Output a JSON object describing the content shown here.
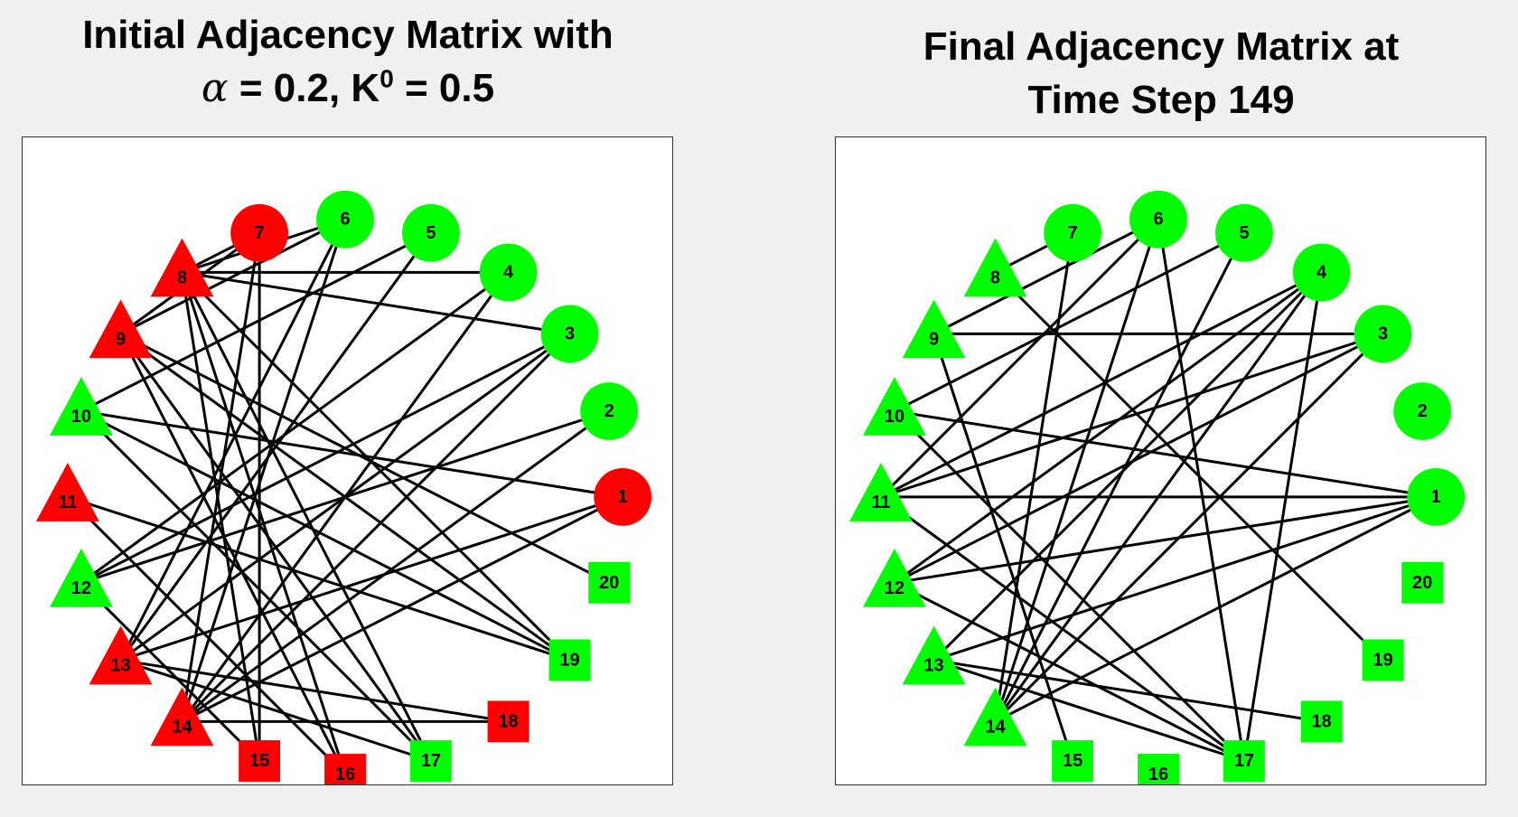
{
  "left": {
    "title_line1": "Initial Adjacency Matrix with",
    "title_alpha": "α",
    "title_mid": " = 0.2, K",
    "title_sup": "0",
    "title_end": " = 0.5",
    "node_colors": {
      "1": "red",
      "2": "green",
      "3": "green",
      "4": "green",
      "5": "green",
      "6": "green",
      "7": "red",
      "8": "red",
      "9": "red",
      "10": "green",
      "11": "red",
      "12": "green",
      "13": "red",
      "14": "red",
      "15": "red",
      "16": "red",
      "17": "green",
      "18": "red",
      "19": "green",
      "20": "green"
    },
    "edges": [
      [
        7,
        8
      ],
      [
        7,
        9
      ],
      [
        7,
        14
      ],
      [
        7,
        15
      ],
      [
        6,
        8
      ],
      [
        6,
        9
      ],
      [
        6,
        13
      ],
      [
        6,
        14
      ],
      [
        5,
        10
      ],
      [
        5,
        13
      ],
      [
        4,
        8
      ],
      [
        4,
        12
      ],
      [
        4,
        14
      ],
      [
        3,
        8
      ],
      [
        3,
        12
      ],
      [
        3,
        13
      ],
      [
        3,
        14
      ],
      [
        2,
        12
      ],
      [
        2,
        14
      ],
      [
        1,
        10
      ],
      [
        1,
        13
      ],
      [
        1,
        14
      ],
      [
        8,
        15
      ],
      [
        8,
        16
      ],
      [
        8,
        17
      ],
      [
        8,
        19
      ],
      [
        9,
        16
      ],
      [
        9,
        17
      ],
      [
        9,
        19
      ],
      [
        9,
        20
      ],
      [
        10,
        17
      ],
      [
        10,
        19
      ],
      [
        11,
        16
      ],
      [
        11,
        19
      ],
      [
        12,
        15
      ],
      [
        13,
        17
      ],
      [
        13,
        18
      ],
      [
        14,
        18
      ]
    ]
  },
  "right": {
    "title_line1": "Final Adjacency Matrix at",
    "title_line2": "Time Step 149",
    "node_colors": {
      "1": "green",
      "2": "green",
      "3": "green",
      "4": "green",
      "5": "green",
      "6": "green",
      "7": "green",
      "8": "green",
      "9": "green",
      "10": "green",
      "11": "green",
      "12": "green",
      "13": "green",
      "14": "green",
      "15": "green",
      "16": "green",
      "17": "green",
      "18": "green",
      "19": "green",
      "20": "green"
    },
    "edges": [
      [
        7,
        8
      ],
      [
        7,
        14
      ],
      [
        6,
        9
      ],
      [
        6,
        11
      ],
      [
        6,
        14
      ],
      [
        6,
        17
      ],
      [
        5,
        10
      ],
      [
        5,
        14
      ],
      [
        4,
        11
      ],
      [
        4,
        12
      ],
      [
        4,
        13
      ],
      [
        4,
        14
      ],
      [
        4,
        17
      ],
      [
        3,
        9
      ],
      [
        3,
        11
      ],
      [
        3,
        12
      ],
      [
        3,
        14
      ],
      [
        1,
        10
      ],
      [
        1,
        11
      ],
      [
        1,
        12
      ],
      [
        1,
        13
      ],
      [
        1,
        14
      ],
      [
        8,
        19
      ],
      [
        9,
        15
      ],
      [
        10,
        17
      ],
      [
        11,
        17
      ],
      [
        12,
        17
      ],
      [
        13,
        18
      ],
      [
        13,
        17
      ]
    ]
  },
  "node_shapes": {
    "1": "circle",
    "2": "circle",
    "3": "circle",
    "4": "circle",
    "5": "circle",
    "6": "circle",
    "7": "circle",
    "8": "triangle",
    "9": "triangle",
    "10": "triangle",
    "11": "triangle",
    "12": "triangle",
    "13": "triangle",
    "14": "triangle",
    "15": "square",
    "16": "square",
    "17": "square",
    "18": "square",
    "19": "square",
    "20": "square"
  },
  "palette": {
    "red": "#ff0000",
    "green": "#00ff00",
    "edge": "#000000"
  }
}
